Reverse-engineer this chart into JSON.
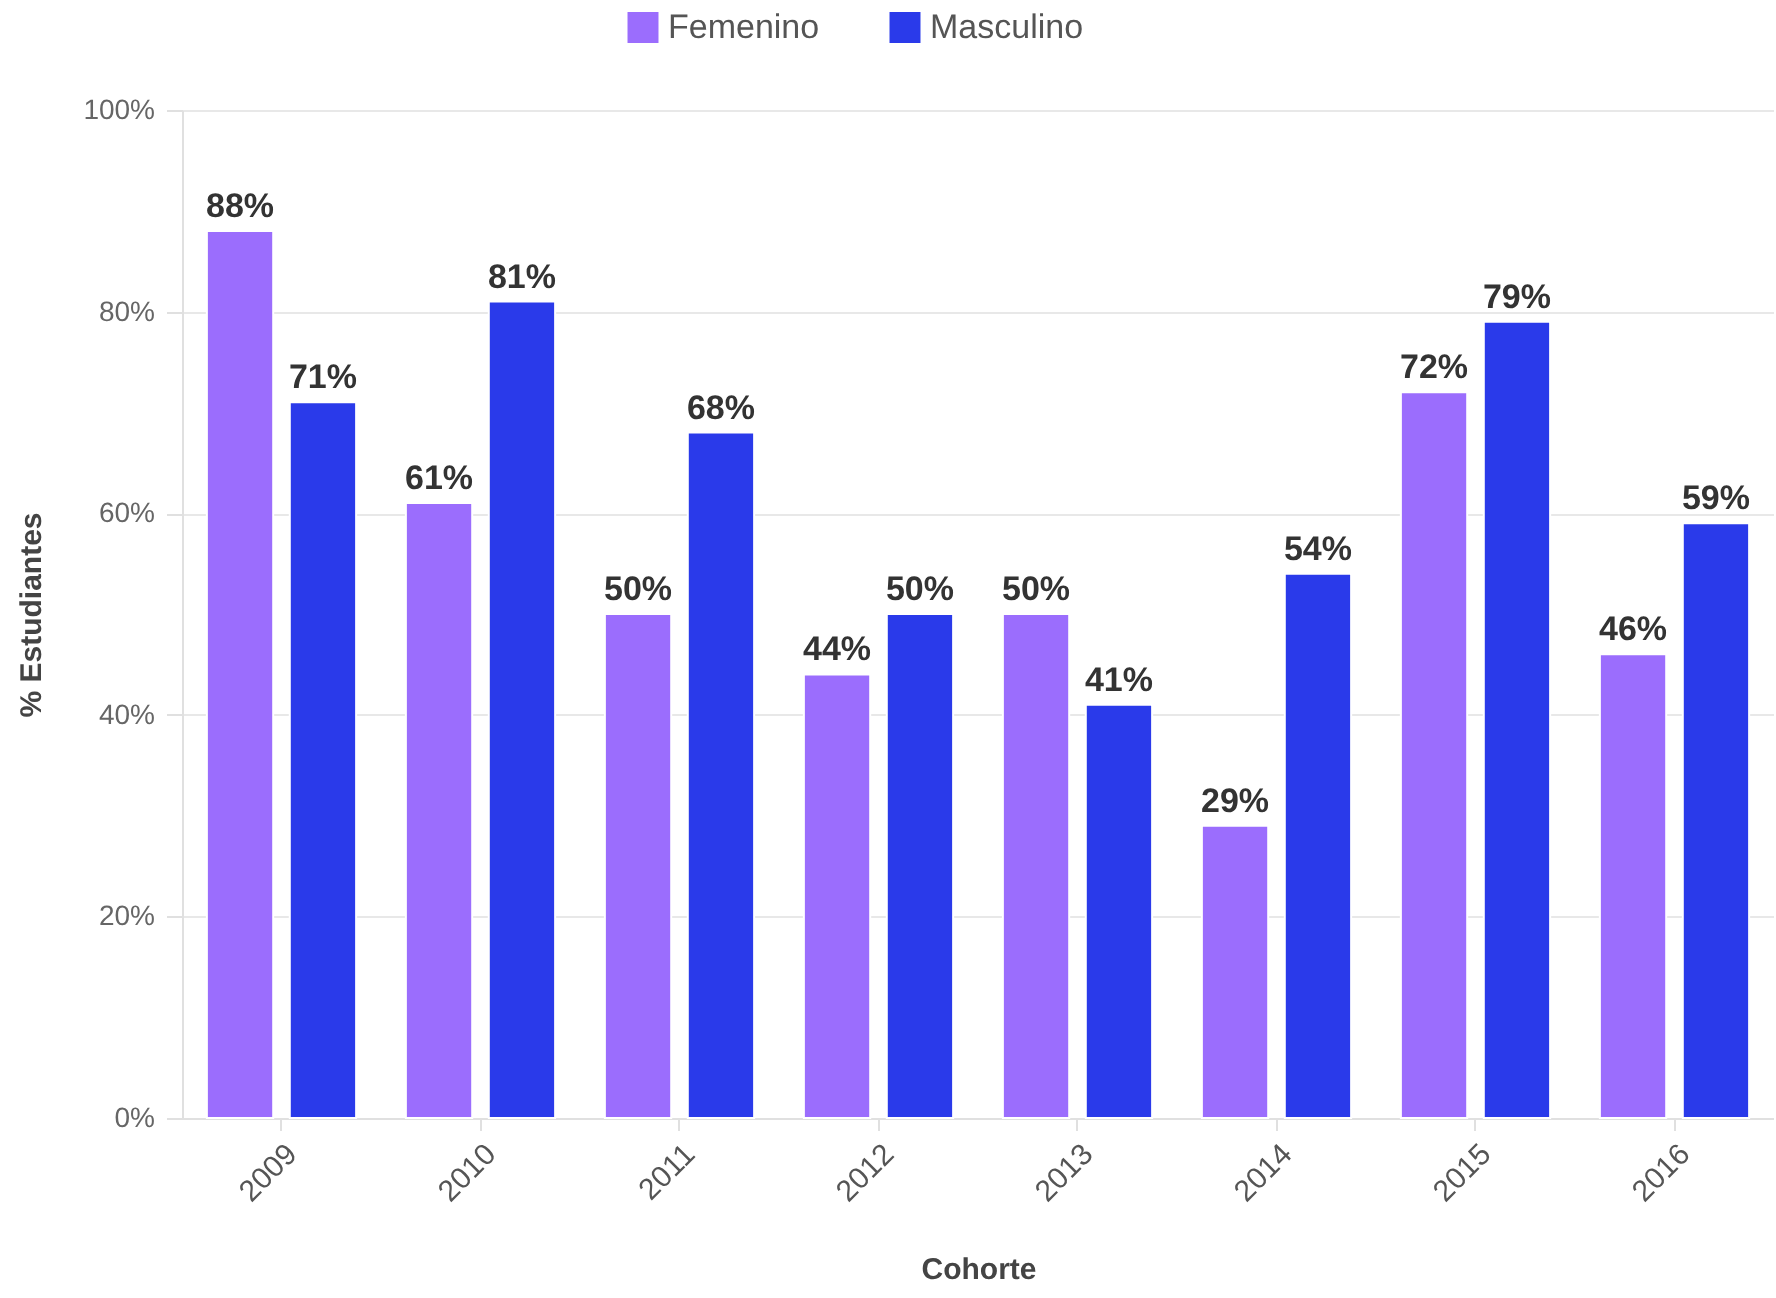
{
  "chart_data": {
    "type": "bar",
    "categories": [
      "2009",
      "2010",
      "2011",
      "2012",
      "2013",
      "2014",
      "2015",
      "2016"
    ],
    "xlabel": "Cohorte",
    "ylabel": "% Estudiantes",
    "ylim": [
      0,
      100
    ],
    "yticks": [
      {
        "value": 0,
        "label": "0%"
      },
      {
        "value": 20,
        "label": "20%"
      },
      {
        "value": 40,
        "label": "40%"
      },
      {
        "value": 60,
        "label": "60%"
      },
      {
        "value": 80,
        "label": "80%"
      },
      {
        "value": 100,
        "label": "100%"
      }
    ],
    "grid": "y",
    "legend": "top",
    "series": [
      {
        "name": "Femenino",
        "color": "#9b6dfd",
        "values": [
          88,
          61,
          50,
          44,
          50,
          29,
          72,
          46
        ],
        "value_labels": [
          "88%",
          "61%",
          "50%",
          "44%",
          "50%",
          "29%",
          "72%",
          "46%"
        ]
      },
      {
        "name": "Masculino",
        "color": "#2a3aea",
        "values": [
          71,
          81,
          68,
          50,
          41,
          54,
          79,
          59
        ],
        "value_labels": [
          "71%",
          "81%",
          "68%",
          "50%",
          "41%",
          "54%",
          "79%",
          "59%"
        ]
      }
    ]
  }
}
